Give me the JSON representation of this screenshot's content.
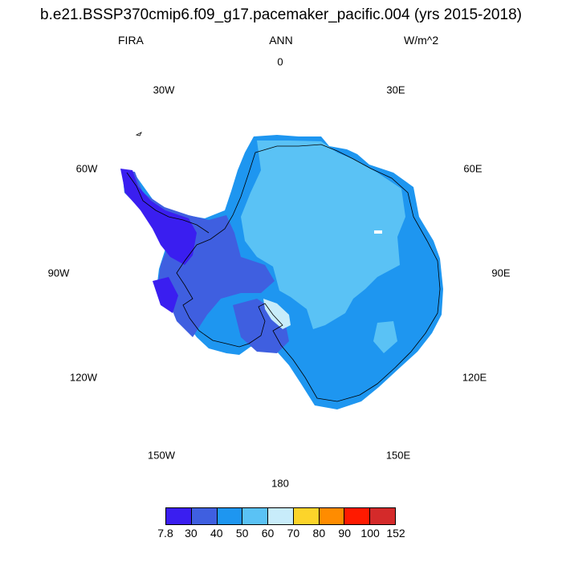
{
  "title": "b.e21.BSSP370cmip6.f09_g17.pacemaker_pacific.004 (yrs 2015-2018)",
  "variable": "FIRA",
  "period": "ANN",
  "units": "W/m^2",
  "longitude_labels": [
    "0",
    "30E",
    "60E",
    "90E",
    "120E",
    "150E",
    "180",
    "150W",
    "120W",
    "90W",
    "60W",
    "30W"
  ],
  "colorbar": {
    "colors": [
      "#3a1ef0",
      "#3f5fe0",
      "#1e96f0",
      "#5ac2f5",
      "#c8ecfa",
      "#fcd42a",
      "#ff8c00",
      "#ff1a00",
      "#d42a2a"
    ],
    "labels": [
      "7.8",
      "30",
      "40",
      "50",
      "60",
      "70",
      "80",
      "90",
      "100",
      "152"
    ]
  },
  "palette": {
    "low": "#3a1ef0",
    "midlow": "#3f5fe0",
    "mid": "#1e96f0",
    "high": "#5ac2f5",
    "ice": "#c8ecfa"
  }
}
